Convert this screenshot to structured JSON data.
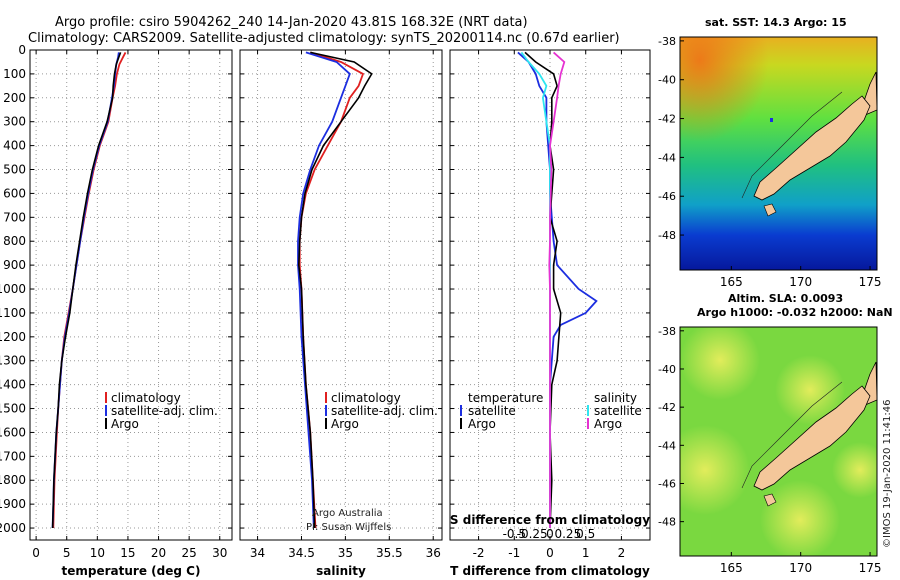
{
  "title": {
    "line1": "Argo profile: csiro 5904262_240 14-Jan-2020 43.81S 168.32E (NRT data)",
    "line2": "Climatology: CARS2009. Satellite-adjusted climatology: synTS_20200114.nc (0.67d earlier)"
  },
  "credit": {
    "line1": "Argo Australia",
    "line2": "PI: Susan Wijffels",
    "stamp": "©IMOS 19-Jan-2020 11:41:46"
  },
  "colors": {
    "climatology": "#e02020",
    "satellite": "#1c2ee0",
    "argo": "#000000",
    "sat_s": "#2ee6f0",
    "argo_s": "#e632d2",
    "land": "#f4c79a"
  },
  "depth_axis": {
    "ylim": [
      2050,
      0
    ],
    "ticks": [
      0,
      100,
      200,
      300,
      400,
      500,
      600,
      700,
      800,
      900,
      1000,
      1100,
      1200,
      1300,
      1400,
      1500,
      1600,
      1700,
      1800,
      1900,
      2000
    ],
    "tick_labels": [
      "0",
      "100",
      "200",
      "300",
      "400",
      "500",
      "600",
      "700",
      "800",
      "900",
      "1000",
      "1100",
      "1200",
      "1300",
      "1400",
      "1500",
      "1600",
      "1700",
      "1800",
      "1900",
      "2000"
    ]
  },
  "chart_data": [
    {
      "type": "line",
      "panel": "temperature",
      "xlabel": "temperature (deg C)",
      "xlim": [
        -1,
        32
      ],
      "xticks": [
        0,
        5,
        10,
        15,
        20,
        25,
        30
      ],
      "xtick_labels": [
        "0",
        "5",
        "10",
        "15",
        "20",
        "25",
        "30"
      ],
      "grid": true,
      "legend": [
        "climatology",
        "satellite-adj. clim.",
        "Argo"
      ],
      "series": [
        {
          "name": "climatology",
          "color": "#e02020",
          "depth": [
            10,
            30,
            60,
            100,
            150,
            200,
            300,
            400,
            500,
            600,
            700,
            800,
            900,
            1000,
            1100,
            1200,
            1300,
            1400,
            1500,
            1600,
            1700,
            1800,
            1900,
            2000
          ],
          "values": [
            14.6,
            14.2,
            13.6,
            13.2,
            12.9,
            12.5,
            11.8,
            10.4,
            9.4,
            8.6,
            7.9,
            7.2,
            6.6,
            6.0,
            5.3,
            4.6,
            4.2,
            3.9,
            3.6,
            3.4,
            3.2,
            3.0,
            2.9,
            2.8
          ]
        },
        {
          "name": "satellite-adj. clim.",
          "color": "#1c2ee0",
          "depth": [
            10,
            30,
            60,
            100,
            150,
            200,
            300,
            400,
            500,
            600,
            700,
            800,
            900,
            1000,
            1100,
            1200,
            1300,
            1400,
            1500,
            1600,
            1700,
            1800,
            1900,
            2000
          ],
          "values": [
            13.5,
            13.4,
            13.1,
            12.9,
            12.7,
            12.4,
            11.7,
            10.3,
            9.3,
            8.5,
            7.8,
            7.2,
            6.6,
            6.0,
            5.4,
            4.7,
            4.2,
            3.9,
            3.6,
            3.3,
            3.1,
            2.9,
            2.8,
            2.7
          ]
        },
        {
          "name": "Argo",
          "color": "#000000",
          "depth": [
            10,
            30,
            60,
            100,
            150,
            200,
            300,
            400,
            500,
            600,
            700,
            800,
            900,
            1000,
            1100,
            1200,
            1300,
            1400,
            1500,
            1600,
            1700,
            1800,
            1900,
            2000
          ],
          "values": [
            13.8,
            13.5,
            13.1,
            12.8,
            12.6,
            12.5,
            11.6,
            10.2,
            9.2,
            8.4,
            7.7,
            7.1,
            6.5,
            6.0,
            5.5,
            4.8,
            4.2,
            3.8,
            3.6,
            3.3,
            3.1,
            2.9,
            2.8,
            2.7
          ]
        }
      ]
    },
    {
      "type": "line",
      "panel": "salinity",
      "xlabel": "salinity",
      "xlim": [
        33.8,
        36.1
      ],
      "xticks": [
        34,
        34.5,
        35,
        35.5,
        36
      ],
      "xtick_labels": [
        "34",
        "34.5",
        "35",
        "35.5",
        "36"
      ],
      "grid": true,
      "legend": [
        "climatology",
        "satellite-adj. clim.",
        "Argo"
      ],
      "series": [
        {
          "name": "climatology",
          "color": "#e02020",
          "depth": [
            10,
            50,
            100,
            150,
            200,
            300,
            400,
            500,
            600,
            700,
            800,
            900,
            1000,
            1200,
            1400,
            1600,
            1800,
            2000
          ],
          "values": [
            34.6,
            34.95,
            35.2,
            35.15,
            35.05,
            34.95,
            34.8,
            34.65,
            34.55,
            34.5,
            34.48,
            34.48,
            34.5,
            34.52,
            34.55,
            34.6,
            34.63,
            34.66
          ]
        },
        {
          "name": "satellite-adj. clim.",
          "color": "#1c2ee0",
          "depth": [
            10,
            50,
            100,
            150,
            200,
            300,
            400,
            500,
            600,
            700,
            800,
            900,
            1000,
            1200,
            1400,
            1600,
            1800,
            2000
          ],
          "values": [
            34.55,
            34.9,
            35.05,
            35.0,
            34.95,
            34.85,
            34.7,
            34.6,
            34.52,
            34.48,
            34.46,
            34.46,
            34.48,
            34.5,
            34.54,
            34.58,
            34.62,
            34.64
          ]
        },
        {
          "name": "Argo",
          "color": "#000000",
          "depth": [
            10,
            50,
            100,
            150,
            200,
            300,
            400,
            500,
            600,
            700,
            800,
            900,
            1000,
            1200,
            1400,
            1600,
            1800,
            2000
          ],
          "values": [
            34.6,
            35.1,
            35.3,
            35.22,
            35.15,
            34.95,
            34.75,
            34.62,
            34.54,
            34.5,
            34.48,
            34.47,
            34.5,
            34.52,
            34.55,
            34.6,
            34.63,
            34.65
          ]
        }
      ]
    },
    {
      "type": "line",
      "panel": "difference",
      "xlabel": "T difference from climatology",
      "xlim": [
        -2.8,
        2.8
      ],
      "xticks": [
        -2,
        -1,
        0,
        1,
        2
      ],
      "xtick_labels": [
        "-2",
        "-1",
        "0",
        "1",
        "2"
      ],
      "s_axis": {
        "label": "S difference from climatology",
        "ticks": [
          -0.5,
          -0.25,
          0,
          0.25,
          0.5
        ],
        "tick_labels": [
          "-0.5",
          "-0.25",
          "0",
          "0.25",
          "0.5"
        ]
      },
      "grid": true,
      "legend_left_title": "temperature",
      "legend_right_title": "salinity",
      "legend_left": [
        "satellite",
        "Argo"
      ],
      "legend_right": [
        "satellite",
        "Argo"
      ],
      "series": [
        {
          "name": "T satellite",
          "color": "#1c2ee0",
          "depth": [
            10,
            50,
            100,
            150,
            200,
            300,
            400,
            500,
            600,
            700,
            800,
            900,
            1000,
            1050,
            1100,
            1150,
            1200,
            1300,
            1400,
            1600,
            1800,
            2000
          ],
          "values": [
            -0.9,
            -0.6,
            -0.4,
            -0.3,
            -0.1,
            -0.1,
            -0.05,
            0.0,
            0.0,
            0.05,
            0.1,
            0.2,
            0.8,
            1.3,
            1.0,
            0.3,
            0.1,
            0.05,
            0.0,
            0.0,
            0.0,
            0.0
          ]
        },
        {
          "name": "T Argo",
          "color": "#000000",
          "depth": [
            10,
            50,
            100,
            150,
            200,
            300,
            400,
            500,
            600,
            700,
            800,
            900,
            1000,
            1100,
            1200,
            1300,
            1400,
            1600,
            1800,
            2000
          ],
          "values": [
            -0.7,
            -0.4,
            0.1,
            0.2,
            0.05,
            0.05,
            0.0,
            0.1,
            0.05,
            0.0,
            0.2,
            0.1,
            0.1,
            0.3,
            0.25,
            0.2,
            0.05,
            0.0,
            0.05,
            0.0
          ]
        },
        {
          "name": "S satellite",
          "color": "#2ee6f0",
          "depth": [
            10,
            50,
            100,
            150,
            200,
            300,
            400,
            500,
            600,
            800,
            1000,
            1200,
            1400,
            1600,
            1800,
            2000
          ],
          "values": [
            -0.4,
            -0.3,
            -0.15,
            -0.05,
            -0.1,
            -0.05,
            0.0,
            0.0,
            0.0,
            0.0,
            0.0,
            0.0,
            0.0,
            0.0,
            0.0,
            0.0
          ]
        },
        {
          "name": "S Argo",
          "color": "#e632d2",
          "depth": [
            10,
            50,
            100,
            150,
            200,
            300,
            400,
            500,
            600,
            700,
            800,
            900,
            1000,
            1200,
            1400,
            1600,
            1800,
            2000
          ],
          "values": [
            0.05,
            0.2,
            0.15,
            0.12,
            0.1,
            0.05,
            0.0,
            0.02,
            0.01,
            0.0,
            0.0,
            -0.01,
            0.0,
            0.0,
            0.0,
            0.0,
            0.0,
            0.0
          ]
        }
      ]
    },
    {
      "type": "heatmap",
      "panel": "sst_map",
      "title": "sat. SST: 14.3 Argo: 15",
      "xticks": [
        165,
        170,
        175
      ],
      "xtick_labels": [
        "165",
        "170",
        "175"
      ],
      "yticks": [
        -38,
        -40,
        -42,
        -44,
        -46,
        -48
      ],
      "ytick_labels": [
        "-38",
        "-40",
        "-42",
        "-44",
        "-46",
        "-48"
      ],
      "xlim": [
        161.3,
        175.5
      ],
      "ylim": [
        -49.8,
        -37.8
      ]
    },
    {
      "type": "heatmap",
      "panel": "sla_map",
      "title_line1": "Altim. SLA: 0.0093",
      "title_line2": "Argo h1000: -0.032 h2000: NaN",
      "xticks": [
        165,
        170,
        175
      ],
      "xtick_labels": [
        "165",
        "170",
        "175"
      ],
      "yticks": [
        -38,
        -40,
        -42,
        -44,
        -46,
        -48
      ],
      "ytick_labels": [
        "-38",
        "-40",
        "-42",
        "-44",
        "-46",
        "-48"
      ],
      "xlim": [
        161.3,
        175.5
      ],
      "ylim": [
        -49.8,
        -37.8
      ]
    }
  ]
}
